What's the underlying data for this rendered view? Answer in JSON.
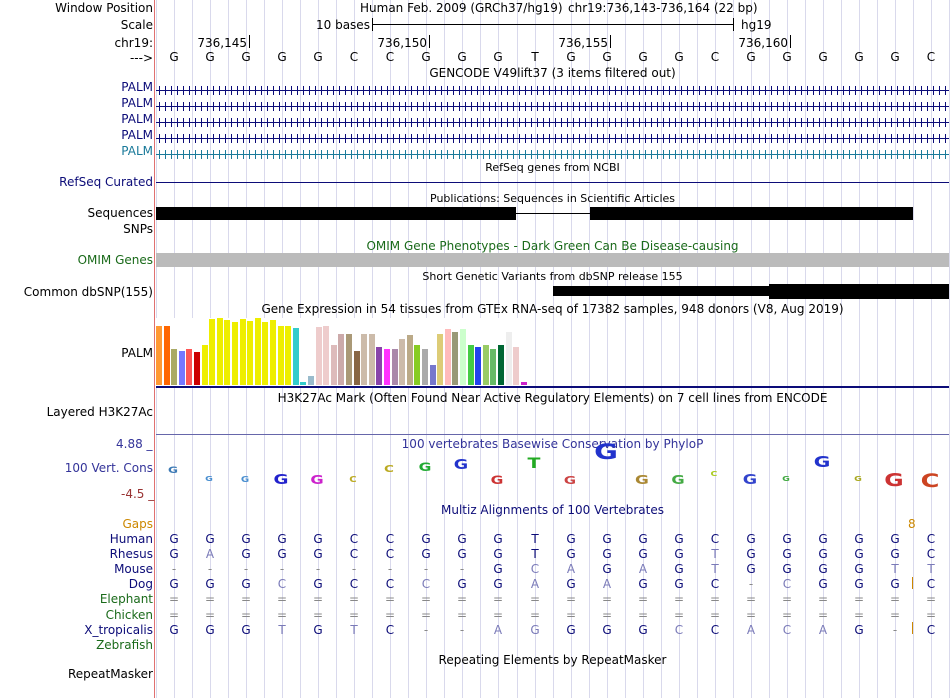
{
  "position": {
    "window_label": "Window Position",
    "scale_label": "Scale",
    "chr_label": "chr19:",
    "arrow_label": "--->",
    "assembly": "Human Feb. 2009 (GRCh37/hg19)",
    "range": "chr19:736,143-736,164 (22 bp)",
    "scale_text": "10 bases",
    "scale_db": "hg19",
    "ticks": [
      "736,145",
      "736,150",
      "736,155",
      "736,160"
    ]
  },
  "sequence": [
    "G",
    "G",
    "G",
    "G",
    "G",
    "C",
    "C",
    "G",
    "G",
    "G",
    "T",
    "G",
    "G",
    "G",
    "G",
    "C",
    "G",
    "G",
    "G",
    "G",
    "G",
    "C"
  ],
  "gencode": {
    "title": "GENCODE V49lift37 (3 items filtered out)",
    "labels": [
      "PALM",
      "PALM",
      "PALM",
      "PALM",
      "PALM"
    ]
  },
  "refseq": {
    "title": "RefSeq genes from NCBI",
    "label": "RefSeq Curated"
  },
  "pubs": {
    "title": "Publications: Sequences in Scientific Articles",
    "labels": [
      "Sequences",
      "SNPs"
    ]
  },
  "omim": {
    "title": "OMIM Gene Phenotypes - Dark Green Can Be Disease-causing",
    "label": "OMIM Genes"
  },
  "dbsnp": {
    "title": "Short Genetic Variants from dbSNP release 155",
    "label": "Common dbSNP(155)"
  },
  "gtex": {
    "title": "Gene Expression in 54 tissues from GTEx RNA-seq of 17382 samples, 948 donors (V8, Aug 2019)",
    "label": "PALM",
    "bars": [
      {
        "v": 0.9,
        "c": "#ff9933"
      },
      {
        "v": 0.9,
        "c": "#ff6600"
      },
      {
        "v": 0.55,
        "c": "#aaaa66"
      },
      {
        "v": 0.52,
        "c": "#7777ff"
      },
      {
        "v": 0.55,
        "c": "#ff5555"
      },
      {
        "v": 0.5,
        "c": "#cc0000"
      },
      {
        "v": 0.6,
        "c": "#eeee00"
      },
      {
        "v": 1.0,
        "c": "#eeee00"
      },
      {
        "v": 1.02,
        "c": "#eeee00"
      },
      {
        "v": 0.98,
        "c": "#eeee00"
      },
      {
        "v": 0.95,
        "c": "#eeee00"
      },
      {
        "v": 1.0,
        "c": "#eeee00"
      },
      {
        "v": 0.97,
        "c": "#eeee00"
      },
      {
        "v": 1.02,
        "c": "#eeee00"
      },
      {
        "v": 0.96,
        "c": "#eeee00"
      },
      {
        "v": 0.98,
        "c": "#eeee00"
      },
      {
        "v": 0.9,
        "c": "#eeee00"
      },
      {
        "v": 0.9,
        "c": "#eeee00"
      },
      {
        "v": 0.87,
        "c": "#33cccc"
      },
      {
        "v": 0.05,
        "c": "#33cccc"
      },
      {
        "v": 0.14,
        "c": "#99bbcc"
      },
      {
        "v": 0.88,
        "c": "#eecccc"
      },
      {
        "v": 0.9,
        "c": "#eecccc"
      },
      {
        "v": 0.6,
        "c": "#ddbbbb"
      },
      {
        "v": 0.78,
        "c": "#ccaaaa"
      },
      {
        "v": 0.78,
        "c": "#aa9977"
      },
      {
        "v": 0.52,
        "c": "#886644"
      },
      {
        "v": 0.78,
        "c": "#ccbbaa"
      },
      {
        "v": 0.78,
        "c": "#ccbbaa"
      },
      {
        "v": 0.58,
        "c": "#8844aa"
      },
      {
        "v": 0.55,
        "c": "#ff33ff"
      },
      {
        "v": 0.55,
        "c": "#aa88aa"
      },
      {
        "v": 0.7,
        "c": "#ccbbaa"
      },
      {
        "v": 0.75,
        "c": "#bbaa88"
      },
      {
        "v": 0.6,
        "c": "#88cc22"
      },
      {
        "v": 0.55,
        "c": "#aaaaaa"
      },
      {
        "v": 0.3,
        "c": "#7777cc"
      },
      {
        "v": 0.78,
        "c": "#ddcc77"
      },
      {
        "v": 0.85,
        "c": "#ffbbbb"
      },
      {
        "v": 0.8,
        "c": "#999977"
      },
      {
        "v": 0.85,
        "c": "#ccffcc"
      },
      {
        "v": 0.6,
        "c": "#44cc44"
      },
      {
        "v": 0.58,
        "c": "#2244ee"
      },
      {
        "v": 0.6,
        "c": "#99cc66"
      },
      {
        "v": 0.55,
        "c": "#66bb66"
      },
      {
        "v": 0.6,
        "c": "#006633"
      },
      {
        "v": 0.8,
        "c": "#eeeeee"
      },
      {
        "v": 0.58,
        "c": "#eecccc"
      },
      {
        "v": 0.04,
        "c": "#cc22cc"
      }
    ]
  },
  "h3k27": {
    "title": "H3K27Ac Mark (Often Found Near Active Regulatory Elements) on 7 cell lines from ENCODE",
    "label": "Layered H3K27Ac"
  },
  "phylop": {
    "title": "100 vertebrates Basewise Conservation by PhyloP",
    "label": "100 Vert. Cons",
    "max_label": "4.88 _",
    "min_label": "-4.5 _",
    "values": [
      0.6,
      -0.2,
      -0.3,
      -1.5,
      -1.2,
      -0.3,
      0.8,
      1.1,
      1.4,
      -1.1,
      1.6,
      -1.0,
      3.1,
      -1.3,
      -1.2,
      0.2,
      -1.4,
      -0.2,
      1.8,
      -0.1,
      -2.3,
      -2.6
    ],
    "colors": [
      "#3c7ab5",
      "#4a8fd0",
      "#4a8fd0",
      "#2222cc",
      "#cc22cc",
      "#bbaa22",
      "#bbaa22",
      "#22aa33",
      "#2233cc",
      "#cc3333",
      "#22aa22",
      "#cc4444",
      "#2233cc",
      "#aa8833",
      "#44aa44",
      "#aacc22",
      "#3344cc",
      "#44aa44",
      "#2233cc",
      "#aaaa22",
      "#cc3333",
      "#cc4422"
    ]
  },
  "multiz": {
    "title": "Multiz Alignments of 100 Vertebrates",
    "gaps_label": "Gaps",
    "gap_count": "8",
    "species": [
      {
        "name": "Human",
        "seq": [
          "G",
          "G",
          "G",
          "G",
          "G",
          "C",
          "C",
          "G",
          "G",
          "G",
          "T",
          "G",
          "G",
          "G",
          "G",
          "C",
          "G",
          "G",
          "G",
          "G",
          "G",
          "C"
        ]
      },
      {
        "name": "Rhesus",
        "seq": [
          "G",
          "A",
          "G",
          "G",
          "G",
          "C",
          "C",
          "G",
          "G",
          "G",
          "T",
          "G",
          "G",
          "G",
          "G",
          "T",
          "G",
          "G",
          "G",
          "G",
          "G",
          "C"
        ]
      },
      {
        "name": "Mouse",
        "seq": [
          "-",
          "-",
          "-",
          "-",
          "-",
          "-",
          "-",
          "-",
          "-",
          "G",
          "C",
          "A",
          "G",
          "A",
          "G",
          "T",
          "G",
          "G",
          "G",
          "G",
          "T",
          "T"
        ]
      },
      {
        "name": "Dog",
        "seq": [
          "G",
          "G",
          "G",
          "C",
          "G",
          "C",
          "C",
          "C",
          "G",
          "G",
          "A",
          "G",
          "A",
          "G",
          "G",
          "C",
          "-",
          "C",
          "G",
          "G",
          "G",
          "C"
        ]
      },
      {
        "name": "Elephant",
        "seq": [
          "=",
          "=",
          "=",
          "=",
          "=",
          "=",
          "=",
          "=",
          "=",
          "=",
          "=",
          "=",
          "=",
          "=",
          "=",
          "=",
          "=",
          "=",
          "=",
          "=",
          "=",
          "="
        ]
      },
      {
        "name": "Chicken",
        "seq": [
          "=",
          "=",
          "=",
          "=",
          "=",
          "=",
          "=",
          "=",
          "=",
          "=",
          "=",
          "=",
          "=",
          "=",
          "=",
          "=",
          "=",
          "=",
          "=",
          "=",
          "=",
          "="
        ]
      },
      {
        "name": "X_tropicalis",
        "seq": [
          "G",
          "G",
          "G",
          "T",
          "G",
          "T",
          "C",
          "-",
          "-",
          "A",
          "G",
          "G",
          "G",
          "G",
          "C",
          "C",
          "A",
          "C",
          "A",
          "G",
          "-",
          "C"
        ]
      },
      {
        "name": "Zebrafish",
        "seq": [
          "",
          "",
          "",
          "",
          "",
          "",
          "",
          "",
          "",
          "",
          "",
          "",
          "",
          "",
          "",
          "",
          "",
          "",
          "",
          "",
          "",
          ""
        ]
      }
    ]
  },
  "repeat": {
    "title": "Repeating Elements by RepeatMasker",
    "label": "RepeatMasker"
  }
}
